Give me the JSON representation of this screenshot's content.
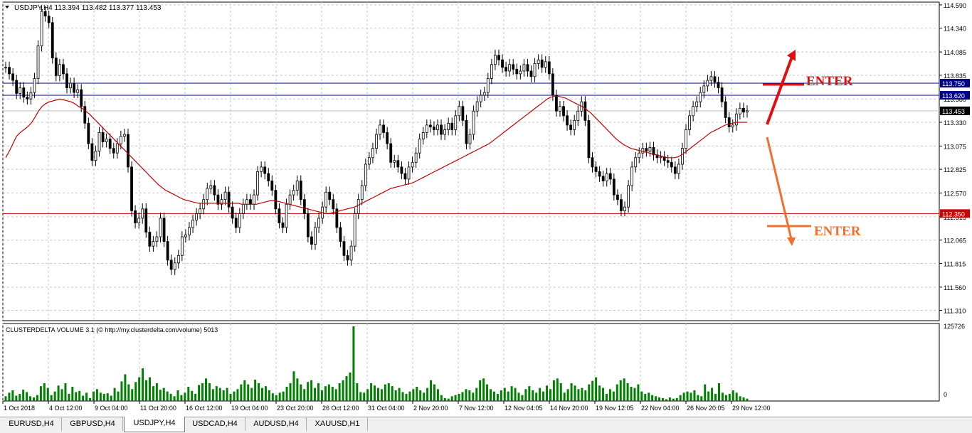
{
  "symbol_header": "USDJPY,H4  113.394 113.482 113.377 113.453",
  "colors": {
    "candle": "#000000",
    "moving_average": "#c00000",
    "resistance_lines": "#00008b",
    "support_line": "#cc0000",
    "current_price_line": "#c0c0c0",
    "volume_bars": "#008000",
    "enter_up": "#e01010",
    "enter_down": "#f07030",
    "grid": "#c8c8c8"
  },
  "tabs": [
    {
      "label": "EURUSD,H4",
      "active": false
    },
    {
      "label": "GBPUSD,H4",
      "active": false
    },
    {
      "label": "USDJPY,H4",
      "active": true
    },
    {
      "label": "USDCAD,H4",
      "active": false
    },
    {
      "label": "AUDUSD,H4",
      "active": false
    },
    {
      "label": "XAUUSD,H1",
      "active": false
    }
  ],
  "annotations": {
    "enter_up": "ENTER",
    "enter_down": "ENTER"
  },
  "chart_data": [
    {
      "type": "candlestick",
      "panel": "price",
      "ylim": [
        111.2,
        114.62
      ],
      "y_ticks": [
        "114.590",
        "114.340",
        "114.085",
        "113.835",
        "113.580",
        "113.330",
        "113.075",
        "112.825",
        "112.570",
        "112.315",
        "112.065",
        "111.815",
        "111.560",
        "111.310"
      ],
      "x_tick_labels": [
        "1 Oct 2018",
        "4 Oct 12:00",
        "9 Oct 04:00",
        "11 Oct 20:00",
        "16 Oct 12:00",
        "19 Oct 04:00",
        "23 Oct 20:00",
        "26 Oct 12:00",
        "31 Oct 04:00",
        "2 Nov 20:00",
        "7 Nov 12:00",
        "12 Nov 04:05",
        "14 Nov 20:00",
        "19 Nov 12:05",
        "22 Nov 04:00",
        "26 Nov 20:05",
        "29 Nov 12:00"
      ],
      "price_levels": [
        {
          "label": "113.750",
          "value": 113.75,
          "kind": "resistance"
        },
        {
          "label": "113.620",
          "value": 113.62,
          "kind": "resistance"
        },
        {
          "label": "113.453",
          "value": 113.453,
          "kind": "current"
        },
        {
          "label": "112.350",
          "value": 112.35,
          "kind": "support"
        }
      ],
      "close_series": [
        113.92,
        113.85,
        113.78,
        113.64,
        113.7,
        113.6,
        113.58,
        113.65,
        113.8,
        114.15,
        114.52,
        114.47,
        114.4,
        114.02,
        113.83,
        113.95,
        113.85,
        113.7,
        113.75,
        113.65,
        113.68,
        113.5,
        113.32,
        113.1,
        112.92,
        113.02,
        113.22,
        113.12,
        113.15,
        113.05,
        113.0,
        113.1,
        113.18,
        113.2,
        112.85,
        112.38,
        112.25,
        112.3,
        112.4,
        112.15,
        112.0,
        112.05,
        112.1,
        112.3,
        112.05,
        111.85,
        111.75,
        111.82,
        111.9,
        112.1,
        112.12,
        112.2,
        112.28,
        112.35,
        112.4,
        112.5,
        112.62,
        112.65,
        112.55,
        112.45,
        112.5,
        112.58,
        112.42,
        112.3,
        112.2,
        112.35,
        112.45,
        112.5,
        112.45,
        112.55,
        112.8,
        112.85,
        112.78,
        112.7,
        112.6,
        112.4,
        112.25,
        112.2,
        112.45,
        112.55,
        112.6,
        112.7,
        112.5,
        112.35,
        112.1,
        112.02,
        112.2,
        112.3,
        112.42,
        112.58,
        112.5,
        112.4,
        112.2,
        112.05,
        111.9,
        111.85,
        112.0,
        112.35,
        112.5,
        112.65,
        112.88,
        112.95,
        113.05,
        113.2,
        113.3,
        113.22,
        113.1,
        112.9,
        112.92,
        112.85,
        112.78,
        112.72,
        112.85,
        112.9,
        113.0,
        113.15,
        113.22,
        113.3,
        113.28,
        113.25,
        113.3,
        113.2,
        113.25,
        113.32,
        113.25,
        113.4,
        113.5,
        113.35,
        113.1,
        113.2,
        113.45,
        113.55,
        113.62,
        113.65,
        113.8,
        113.95,
        114.05,
        114.0,
        113.92,
        113.88,
        113.95,
        113.9,
        113.85,
        113.88,
        113.95,
        113.88,
        113.82,
        113.96,
        114.0,
        113.92,
        113.98,
        113.85,
        113.62,
        113.45,
        113.5,
        113.4,
        113.3,
        113.25,
        113.35,
        113.45,
        113.55,
        113.35,
        112.95,
        112.85,
        112.8,
        112.75,
        112.7,
        112.78,
        112.72,
        112.55,
        112.5,
        112.38,
        112.42,
        112.65,
        112.85,
        112.95,
        113.0,
        113.05,
        113.02,
        113.06,
        112.98,
        112.95,
        112.96,
        112.92,
        112.9,
        112.85,
        112.78,
        112.88,
        113.05,
        113.25,
        113.4,
        113.5,
        113.55,
        113.65,
        113.72,
        113.78,
        113.82,
        113.76,
        113.7,
        113.55,
        113.38,
        113.28,
        113.3,
        113.42,
        113.48,
        113.44,
        113.453
      ],
      "moving_average_series": [
        112.95,
        113.02,
        113.1,
        113.18,
        113.22,
        113.25,
        113.28,
        113.32,
        113.38,
        113.45,
        113.5,
        113.53,
        113.55,
        113.56,
        113.57,
        113.58,
        113.57,
        113.56,
        113.55,
        113.53,
        113.5,
        113.48,
        113.45,
        113.42,
        113.38,
        113.34,
        113.3,
        113.26,
        113.22,
        113.18,
        113.14,
        113.1,
        113.06,
        113.02,
        112.98,
        112.94,
        112.9,
        112.86,
        112.82,
        112.78,
        112.74,
        112.7,
        112.66,
        112.63,
        112.6,
        112.58,
        112.56,
        112.54,
        112.52,
        112.5,
        112.49,
        112.48,
        112.47,
        112.46,
        112.46,
        112.46,
        112.46,
        112.46,
        112.46,
        112.46,
        112.46,
        112.46,
        112.46,
        112.46,
        112.46,
        112.45,
        112.45,
        112.45,
        112.45,
        112.45,
        112.46,
        112.47,
        112.48,
        112.49,
        112.49,
        112.48,
        112.47,
        112.46,
        112.45,
        112.44,
        112.43,
        112.42,
        112.41,
        112.4,
        112.39,
        112.38,
        112.37,
        112.36,
        112.35,
        112.35,
        112.36,
        112.37,
        112.38,
        112.39,
        112.4,
        112.41,
        112.42,
        112.44,
        112.46,
        112.48,
        112.5,
        112.52,
        112.54,
        112.56,
        112.58,
        112.6,
        112.62,
        112.63,
        112.64,
        112.65,
        112.66,
        112.67,
        112.68,
        112.7,
        112.72,
        112.74,
        112.76,
        112.78,
        112.8,
        112.82,
        112.84,
        112.86,
        112.88,
        112.9,
        112.92,
        112.94,
        112.96,
        112.98,
        113.0,
        113.02,
        113.04,
        113.06,
        113.08,
        113.1,
        113.13,
        113.16,
        113.19,
        113.22,
        113.25,
        113.28,
        113.31,
        113.34,
        113.37,
        113.4,
        113.43,
        113.46,
        113.49,
        113.52,
        113.55,
        113.58,
        113.6,
        113.61,
        113.61,
        113.6,
        113.59,
        113.57,
        113.55,
        113.53,
        113.51,
        113.49,
        113.46,
        113.43,
        113.39,
        113.35,
        113.31,
        113.27,
        113.23,
        113.19,
        113.15,
        113.12,
        113.09,
        113.07,
        113.05,
        113.04,
        113.03,
        113.02,
        113.01,
        113.0,
        112.99,
        112.98,
        112.97,
        112.96,
        112.95,
        112.95,
        112.95,
        112.96,
        112.98,
        113.01,
        113.04,
        113.07,
        113.1,
        113.13,
        113.16,
        113.19,
        113.22,
        113.24,
        113.26,
        113.28,
        113.3,
        113.31,
        113.32,
        113.33,
        113.33,
        113.33,
        113.33
      ]
    },
    {
      "type": "bar",
      "panel": "volume",
      "title": "CLUSTERDELTA  VOLUME 3.1 (© http://my.clusterdelta.com/volume) 5013",
      "ylim": [
        0,
        125726
      ],
      "y_ticks": [
        "125726",
        "0"
      ],
      "values": [
        8000,
        14000,
        18000,
        9000,
        12000,
        19000,
        15000,
        8000,
        6000,
        10000,
        25000,
        30000,
        22000,
        10000,
        16000,
        26000,
        20000,
        30000,
        12000,
        24000,
        15000,
        17000,
        9000,
        14000,
        5000,
        16000,
        20000,
        14000,
        12000,
        13000,
        9000,
        22000,
        16000,
        33000,
        45000,
        28000,
        20000,
        32000,
        40000,
        55000,
        35000,
        40000,
        25000,
        30000,
        19000,
        22000,
        16000,
        12000,
        8000,
        18000,
        10000,
        14000,
        24000,
        17000,
        12000,
        27000,
        30000,
        38000,
        30000,
        20000,
        25000,
        22000,
        18000,
        22000,
        12000,
        16000,
        20000,
        28000,
        35000,
        28000,
        22000,
        36000,
        30000,
        22000,
        25000,
        18000,
        13000,
        10000,
        14000,
        16000,
        24000,
        30000,
        50000,
        38000,
        28000,
        20000,
        32000,
        35000,
        22000,
        30000,
        18000,
        25000,
        28000,
        24000,
        20000,
        30000,
        35000,
        42000,
        48000,
        125726,
        30000,
        15000,
        14000,
        20000,
        30000,
        26000,
        22000,
        20000,
        28000,
        30000,
        25000,
        18000,
        22000,
        15000,
        12000,
        16000,
        20000,
        24000,
        18000,
        14000,
        22000,
        35000,
        28000,
        20000,
        10000,
        5000,
        4000,
        8000,
        10000,
        12000,
        15000,
        20000,
        18000,
        14000,
        22000,
        35000,
        38000,
        28000,
        20000,
        16000,
        12000,
        18000,
        22000,
        16000,
        25000,
        22000,
        14000,
        10000,
        20000,
        25000,
        18000,
        14000,
        22000,
        16000,
        26000,
        20000,
        35000,
        38000,
        30000,
        14000,
        20000,
        30000,
        26000,
        20000,
        22000,
        18000,
        28000,
        34000,
        40000,
        26000,
        22000,
        12000,
        20000,
        16000,
        28000,
        35000,
        38000,
        30000,
        24000,
        22000,
        28000,
        16000,
        12000,
        14000,
        10000,
        8000,
        6000,
        5000,
        3000,
        6000,
        4000,
        5000,
        10000,
        14000,
        16000,
        14000,
        18000,
        10000,
        8000,
        28000,
        16000,
        22000,
        12000,
        30000,
        14000,
        10000,
        12000,
        18000,
        14000,
        8000,
        6000,
        4000
      ]
    }
  ]
}
